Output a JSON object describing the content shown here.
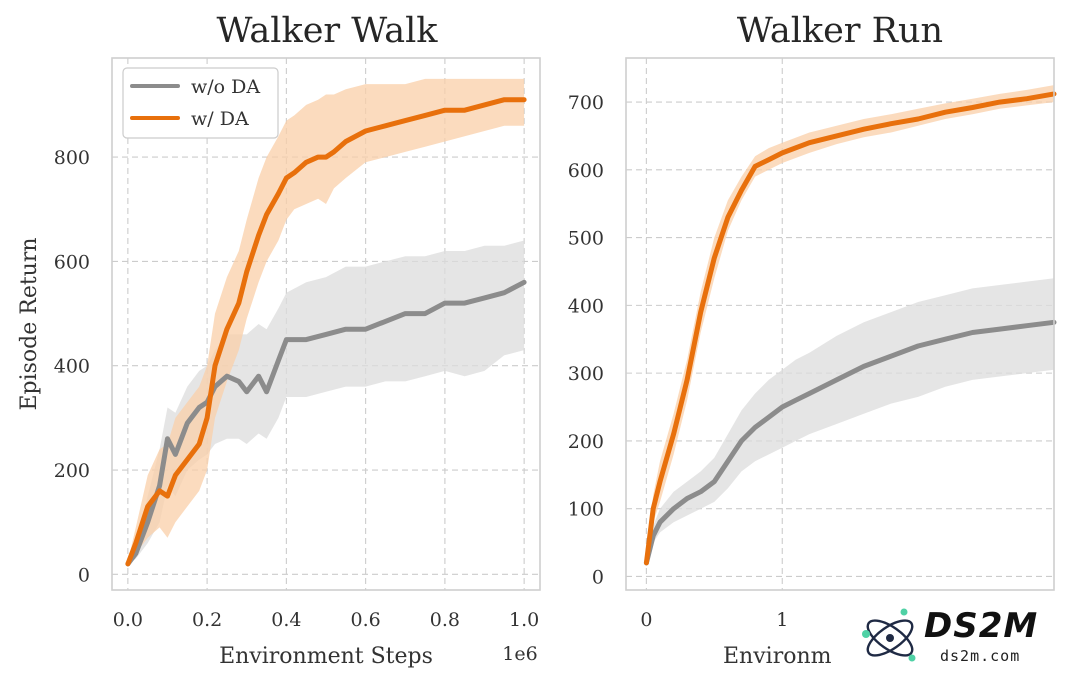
{
  "colors": {
    "no_da": "#8c8c8c",
    "no_da_band": "#dcdcdc",
    "da": "#e8700c",
    "da_band": "#f9cfa8"
  },
  "watermark": {
    "brand": "DS2M",
    "site": "ds2m.com",
    "logo_icon": "atom-logo-icon"
  },
  "chart_data": [
    {
      "type": "line",
      "title": "Walker Walk",
      "xlabel": "Environment Steps",
      "ylabel": "Episode Return",
      "x_offset_label": "1e6",
      "xlim": [
        -0.04,
        1.04
      ],
      "ylim": [
        -30,
        990
      ],
      "xticks": [
        0.0,
        0.2,
        0.4,
        0.6,
        0.8,
        1.0
      ],
      "xtick_labels": [
        "0.0",
        "0.2",
        "0.4",
        "0.6",
        "0.8",
        "1.0"
      ],
      "yticks": [
        0,
        200,
        400,
        600,
        800
      ],
      "ytick_labels": [
        "0",
        "200",
        "400",
        "600",
        "800"
      ],
      "grid": true,
      "legend": {
        "placement": "upper-left",
        "entries": [
          "w/o DA",
          "w/ DA"
        ]
      },
      "series": [
        {
          "name": "w/o DA",
          "color": "#8c8c8c",
          "x": [
            0,
            0.02,
            0.05,
            0.08,
            0.1,
            0.12,
            0.15,
            0.18,
            0.2,
            0.22,
            0.25,
            0.28,
            0.3,
            0.33,
            0.35,
            0.38,
            0.4,
            0.45,
            0.5,
            0.55,
            0.6,
            0.65,
            0.7,
            0.75,
            0.8,
            0.85,
            0.9,
            0.95,
            1.0
          ],
          "y": [
            20,
            40,
            100,
            170,
            260,
            230,
            290,
            320,
            330,
            360,
            380,
            370,
            350,
            380,
            350,
            410,
            450,
            450,
            460,
            470,
            470,
            485,
            500,
            500,
            520,
            520,
            530,
            540,
            560
          ],
          "lower": [
            20,
            30,
            60,
            100,
            170,
            150,
            200,
            220,
            230,
            250,
            260,
            260,
            250,
            270,
            260,
            300,
            340,
            340,
            350,
            360,
            360,
            370,
            370,
            380,
            390,
            380,
            390,
            420,
            430
          ],
          "upper": [
            25,
            60,
            150,
            240,
            320,
            310,
            360,
            390,
            400,
            430,
            460,
            460,
            460,
            480,
            470,
            510,
            540,
            560,
            570,
            590,
            590,
            600,
            610,
            610,
            620,
            620,
            630,
            630,
            640
          ]
        },
        {
          "name": "w/ DA",
          "color": "#e8700c",
          "x": [
            0,
            0.02,
            0.05,
            0.08,
            0.1,
            0.12,
            0.15,
            0.18,
            0.2,
            0.22,
            0.25,
            0.28,
            0.3,
            0.33,
            0.35,
            0.38,
            0.4,
            0.42,
            0.45,
            0.48,
            0.5,
            0.52,
            0.55,
            0.6,
            0.65,
            0.7,
            0.75,
            0.8,
            0.85,
            0.9,
            0.95,
            1.0
          ],
          "y": [
            20,
            60,
            130,
            160,
            150,
            190,
            220,
            250,
            300,
            400,
            470,
            520,
            580,
            650,
            690,
            730,
            760,
            770,
            790,
            800,
            800,
            810,
            830,
            850,
            860,
            870,
            880,
            890,
            890,
            900,
            910,
            910
          ],
          "lower": [
            20,
            40,
            70,
            90,
            70,
            100,
            130,
            160,
            200,
            300,
            370,
            430,
            490,
            560,
            600,
            640,
            680,
            700,
            710,
            720,
            710,
            740,
            760,
            790,
            800,
            810,
            820,
            830,
            840,
            850,
            860,
            860
          ],
          "upper": [
            25,
            90,
            190,
            240,
            250,
            300,
            330,
            360,
            400,
            500,
            570,
            620,
            680,
            760,
            800,
            840,
            870,
            880,
            900,
            910,
            920,
            920,
            930,
            940,
            940,
            940,
            950,
            950,
            950,
            950,
            950,
            950
          ]
        }
      ]
    },
    {
      "type": "line",
      "title": "Walker Run",
      "xlabel": "Environm",
      "ylabel": "",
      "xlim": [
        -0.15,
        3.0
      ],
      "ylim": [
        -20,
        765
      ],
      "xticks": [
        0,
        1
      ],
      "xtick_labels": [
        "0",
        "1"
      ],
      "yticks": [
        0,
        100,
        200,
        300,
        400,
        500,
        600,
        700
      ],
      "ytick_labels": [
        "0",
        "100",
        "200",
        "300",
        "400",
        "500",
        "600",
        "700"
      ],
      "grid": true,
      "series": [
        {
          "name": "w/o DA",
          "color": "#8c8c8c",
          "x": [
            0,
            0.05,
            0.1,
            0.2,
            0.3,
            0.4,
            0.5,
            0.6,
            0.7,
            0.8,
            0.9,
            1.0,
            1.1,
            1.2,
            1.4,
            1.6,
            1.8,
            2.0,
            2.2,
            2.4,
            2.6,
            2.8,
            3.0
          ],
          "y": [
            20,
            60,
            80,
            100,
            115,
            125,
            140,
            170,
            200,
            220,
            235,
            250,
            260,
            270,
            290,
            310,
            325,
            340,
            350,
            360,
            365,
            370,
            375
          ],
          "lower": [
            20,
            50,
            65,
            80,
            90,
            100,
            110,
            130,
            155,
            170,
            180,
            190,
            200,
            210,
            225,
            240,
            255,
            265,
            280,
            290,
            295,
            300,
            305
          ],
          "upper": [
            25,
            75,
            100,
            125,
            140,
            155,
            175,
            210,
            245,
            270,
            290,
            305,
            320,
            330,
            355,
            375,
            390,
            405,
            415,
            425,
            430,
            435,
            440
          ]
        },
        {
          "name": "w/ DA",
          "color": "#e8700c",
          "x": [
            0,
            0.05,
            0.1,
            0.2,
            0.3,
            0.4,
            0.5,
            0.6,
            0.7,
            0.8,
            0.9,
            1.0,
            1.2,
            1.4,
            1.6,
            1.8,
            2.0,
            2.2,
            2.4,
            2.6,
            2.8,
            3.0
          ],
          "y": [
            20,
            100,
            140,
            210,
            290,
            390,
            470,
            530,
            570,
            605,
            615,
            625,
            640,
            650,
            660,
            668,
            675,
            685,
            692,
            700,
            705,
            712
          ],
          "lower": [
            20,
            80,
            110,
            180,
            260,
            360,
            440,
            510,
            555,
            590,
            600,
            610,
            625,
            638,
            648,
            655,
            665,
            675,
            682,
            690,
            695,
            700
          ],
          "upper": [
            25,
            120,
            170,
            240,
            320,
            420,
            500,
            555,
            590,
            620,
            632,
            640,
            655,
            665,
            675,
            682,
            690,
            698,
            705,
            712,
            718,
            725
          ]
        }
      ]
    }
  ]
}
